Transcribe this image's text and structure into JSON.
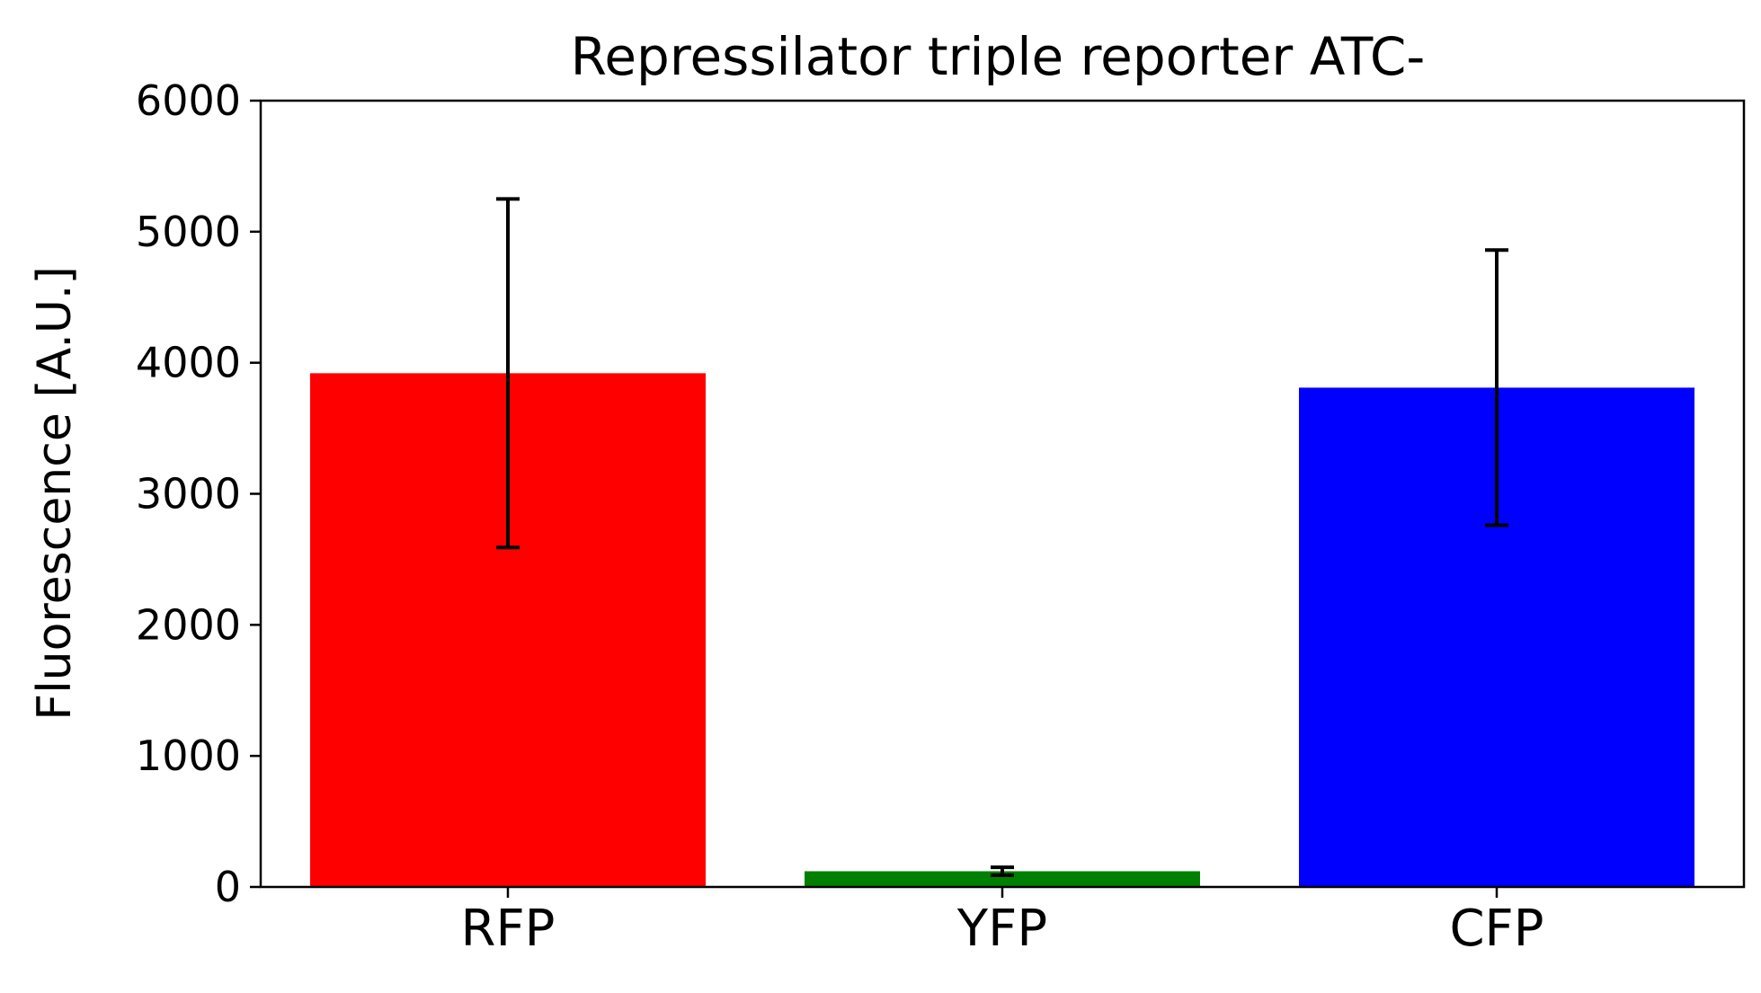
{
  "chart_data": {
    "type": "bar",
    "title": "Repressilator triple reporter ATC-",
    "xlabel": "",
    "ylabel": "Fluorescence [A.U.]",
    "categories": [
      "RFP",
      "YFP",
      "CFP"
    ],
    "values": [
      3920,
      120,
      3810
    ],
    "error": [
      1330,
      30,
      1050
    ],
    "colors": [
      "#ff0000",
      "#008000",
      "#0000ff"
    ],
    "ylim": [
      0,
      6000
    ],
    "yticks": [
      0,
      1000,
      2000,
      3000,
      4000,
      5000,
      6000
    ],
    "grid": false,
    "legend": "none"
  }
}
